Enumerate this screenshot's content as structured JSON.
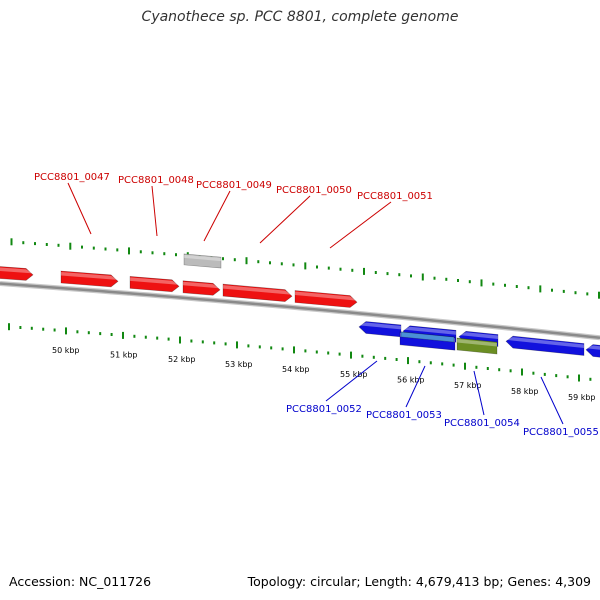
{
  "title": "Cyanothece sp. PCC 8801, complete genome",
  "footer": {
    "accession": "Accession: NC_011726",
    "summary": "Topology: circular; Length: 4,679,413 bp; Genes: 4,309"
  },
  "colors": {
    "forward_gene": "#ee1111",
    "reverse_gene": "#1111dd",
    "rna_gene": "#bbbbbb",
    "highlight_a": "#4a8fd6",
    "highlight_b": "#6b8e23",
    "tick": "#118811",
    "backbone": "#8a8a8a",
    "forward_label": "#cc0000",
    "reverse_label": "#0000cc"
  },
  "scale_labels": [
    "50 kbp",
    "51 kbp",
    "52 kbp",
    "53 kbp",
    "54 kbp",
    "55 kbp",
    "56 kbp",
    "57 kbp",
    "58 kbp",
    "59 kbp"
  ],
  "forward_labels": [
    "PCC8801_0047",
    "PCC8801_0048",
    "PCC8801_0049",
    "PCC8801_0050",
    "PCC8801_0051"
  ],
  "reverse_labels": [
    "PCC8801_0052",
    "PCC8801_0053",
    "PCC8801_0054",
    "PCC8801_0055"
  ]
}
